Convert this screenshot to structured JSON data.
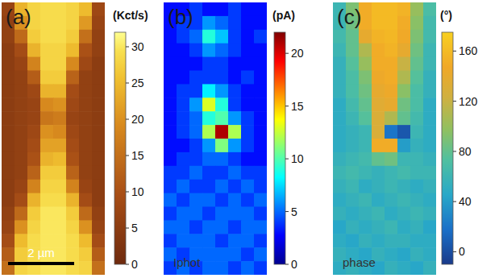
{
  "chart_data": [
    {
      "type": "heatmap",
      "title": "(a)",
      "colorbar_label": "(Kct/s)",
      "annotations": [
        "2 µm"
      ],
      "tick_labels": false,
      "colorbar_range": [
        0,
        32
      ],
      "colorbar_ticks": [
        0,
        5,
        10,
        15,
        20,
        25,
        30
      ],
      "cells": [
        [
          7,
          24,
          28,
          29,
          29,
          28,
          25,
          8
        ],
        [
          6,
          20,
          28,
          29,
          29,
          28,
          21,
          7
        ],
        [
          6,
          14,
          27,
          29,
          29,
          27,
          15,
          6
        ],
        [
          5,
          9,
          24,
          28,
          28,
          25,
          10,
          6
        ],
        [
          5,
          7,
          18,
          28,
          28,
          19,
          8,
          5
        ],
        [
          5,
          6,
          12,
          27,
          27,
          13,
          6,
          5
        ],
        [
          5,
          6,
          8,
          24,
          24,
          9,
          6,
          5
        ],
        [
          5,
          6,
          7,
          19,
          20,
          8,
          6,
          5
        ],
        [
          5,
          6,
          7,
          16,
          17,
          7,
          6,
          5
        ],
        [
          5,
          6,
          8,
          20,
          19,
          8,
          6,
          5
        ],
        [
          5,
          6,
          9,
          22,
          22,
          9,
          6,
          5
        ],
        [
          5,
          6,
          10,
          24,
          25,
          10,
          6,
          5
        ],
        [
          5,
          6,
          13,
          27,
          27,
          13,
          6,
          5
        ],
        [
          5,
          7,
          18,
          28,
          28,
          18,
          7,
          5
        ],
        [
          5,
          9,
          24,
          29,
          29,
          24,
          9,
          5
        ],
        [
          6,
          14,
          27,
          30,
          30,
          27,
          14,
          6
        ],
        [
          7,
          20,
          28,
          30,
          30,
          28,
          20,
          7
        ],
        [
          9,
          25,
          29,
          30,
          30,
          29,
          25,
          9
        ],
        [
          12,
          27,
          29,
          30,
          30,
          29,
          27,
          12
        ],
        [
          15,
          28,
          29,
          30,
          30,
          29,
          28,
          15
        ]
      ]
    },
    {
      "type": "heatmap",
      "title": "(b)",
      "colorbar_label": "(pA)",
      "annotations": [
        "Iphot"
      ],
      "tick_labels": false,
      "colorbar_range": [
        0,
        22
      ],
      "colorbar_ticks": [
        0,
        5,
        10,
        15,
        20
      ],
      "cells": [
        [
          3,
          3,
          4,
          3,
          3,
          4,
          3,
          3
        ],
        [
          3,
          4,
          4,
          6,
          5,
          4,
          3,
          3
        ],
        [
          3,
          4,
          5,
          9,
          7,
          4,
          3,
          4
        ],
        [
          3,
          3,
          4,
          6,
          5,
          4,
          3,
          3
        ],
        [
          3,
          3,
          3,
          4,
          4,
          3,
          3,
          3
        ],
        [
          3,
          3,
          4,
          4,
          4,
          3,
          4,
          3
        ],
        [
          3,
          4,
          4,
          8,
          6,
          4,
          3,
          3
        ],
        [
          3,
          4,
          6,
          13,
          9,
          4,
          3,
          3
        ],
        [
          3,
          4,
          5,
          9,
          10,
          6,
          4,
          3
        ],
        [
          3,
          4,
          5,
          12,
          21,
          12,
          4,
          3
        ],
        [
          3,
          3,
          4,
          6,
          11,
          6,
          4,
          3
        ],
        [
          3,
          4,
          4,
          5,
          5,
          4,
          3,
          3
        ],
        [
          4,
          4,
          5,
          4,
          4,
          5,
          4,
          4
        ],
        [
          4,
          5,
          4,
          4,
          5,
          4,
          5,
          4
        ],
        [
          5,
          4,
          5,
          5,
          4,
          5,
          4,
          5
        ],
        [
          4,
          5,
          5,
          4,
          5,
          5,
          5,
          4
        ],
        [
          5,
          5,
          4,
          5,
          5,
          4,
          5,
          5
        ],
        [
          4,
          5,
          5,
          5,
          4,
          5,
          5,
          4
        ],
        [
          5,
          4,
          5,
          5,
          5,
          5,
          4,
          5
        ],
        [
          4,
          5,
          4,
          5,
          5,
          4,
          5,
          4
        ]
      ]
    },
    {
      "type": "heatmap",
      "title": "(c)",
      "colorbar_label": "(°)",
      "annotations": [
        "phase"
      ],
      "tick_labels": false,
      "colorbar_range": [
        -10,
        175
      ],
      "colorbar_ticks": [
        0,
        40,
        80,
        120,
        160
      ],
      "cells": [
        [
          60,
          90,
          150,
          160,
          160,
          155,
          100,
          70
        ],
        [
          60,
          85,
          150,
          160,
          160,
          150,
          95,
          65
        ],
        [
          65,
          80,
          140,
          155,
          158,
          148,
          90,
          65
        ],
        [
          60,
          80,
          110,
          150,
          155,
          140,
          85,
          60
        ],
        [
          55,
          75,
          100,
          150,
          150,
          120,
          80,
          60
        ],
        [
          55,
          70,
          90,
          145,
          150,
          110,
          75,
          55
        ],
        [
          55,
          70,
          85,
          140,
          145,
          95,
          70,
          55
        ],
        [
          50,
          65,
          80,
          135,
          140,
          85,
          70,
          50
        ],
        [
          50,
          60,
          75,
          130,
          110,
          80,
          65,
          50
        ],
        [
          50,
          55,
          60,
          130,
          20,
          5,
          60,
          50
        ],
        [
          50,
          55,
          60,
          150,
          150,
          40,
          55,
          50
        ],
        [
          55,
          60,
          65,
          80,
          85,
          60,
          60,
          55
        ],
        [
          60,
          65,
          60,
          55,
          60,
          65,
          60,
          60
        ],
        [
          55,
          60,
          50,
          55,
          60,
          55,
          50,
          55
        ],
        [
          50,
          55,
          60,
          50,
          55,
          60,
          55,
          50
        ],
        [
          55,
          50,
          55,
          60,
          50,
          55,
          60,
          55
        ],
        [
          45,
          55,
          50,
          55,
          60,
          50,
          55,
          45
        ],
        [
          50,
          45,
          55,
          50,
          55,
          55,
          50,
          50
        ],
        [
          55,
          50,
          45,
          55,
          50,
          45,
          55,
          50
        ],
        [
          50,
          55,
          50,
          45,
          55,
          50,
          45,
          55
        ]
      ]
    }
  ]
}
